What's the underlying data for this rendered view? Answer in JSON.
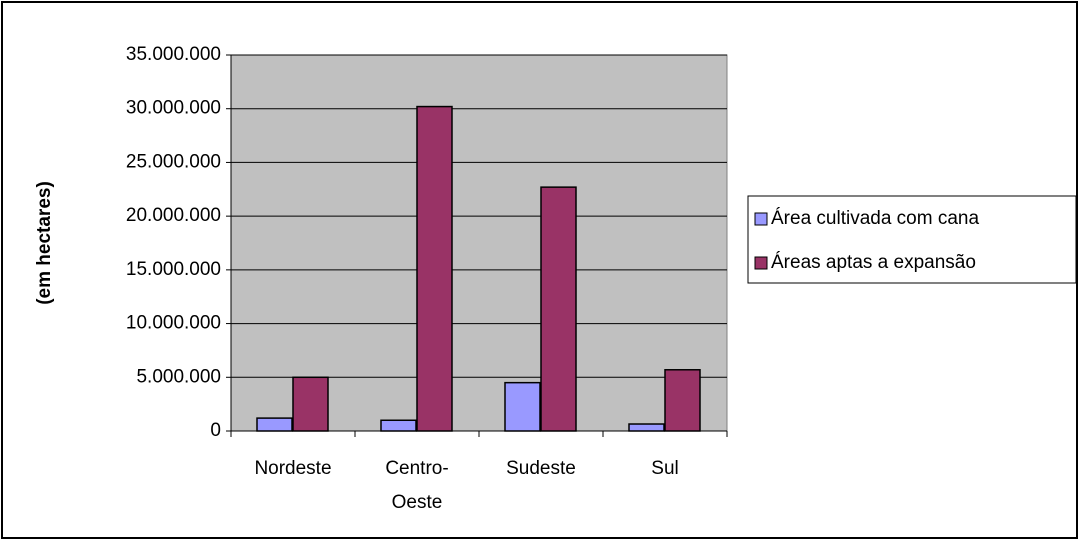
{
  "chart_data": {
    "type": "bar",
    "y_label": "(em hectares)",
    "categories": [
      "Nordeste",
      "Centro-Oeste",
      "Sudeste",
      "Sul"
    ],
    "series": [
      {
        "name": "Área cultivada com cana",
        "color": "#9999ff",
        "values": [
          1200000,
          1000000,
          4500000,
          650000
        ]
      },
      {
        "name": "Áreas aptas a expansão",
        "color": "#993366",
        "values": [
          5000000,
          30200000,
          22700000,
          5700000
        ]
      }
    ],
    "ylim": [
      0,
      35000000
    ],
    "yticks": [
      0,
      {
        "value": 5000000,
        "label": "5.000.000"
      },
      {
        "value": 10000000,
        "label": "10.000.000"
      },
      {
        "value": 15000000,
        "label": "15.000.000"
      },
      {
        "value": 20000000,
        "label": "20.000.000"
      },
      {
        "value": 25000000,
        "label": "25.000.000"
      },
      {
        "value": 30000000,
        "label": "30.000.000"
      },
      {
        "value": 35000000,
        "label": "35.000.000"
      }
    ],
    "grid": true,
    "legend": "right",
    "plot_background": "#c0c0c0"
  }
}
